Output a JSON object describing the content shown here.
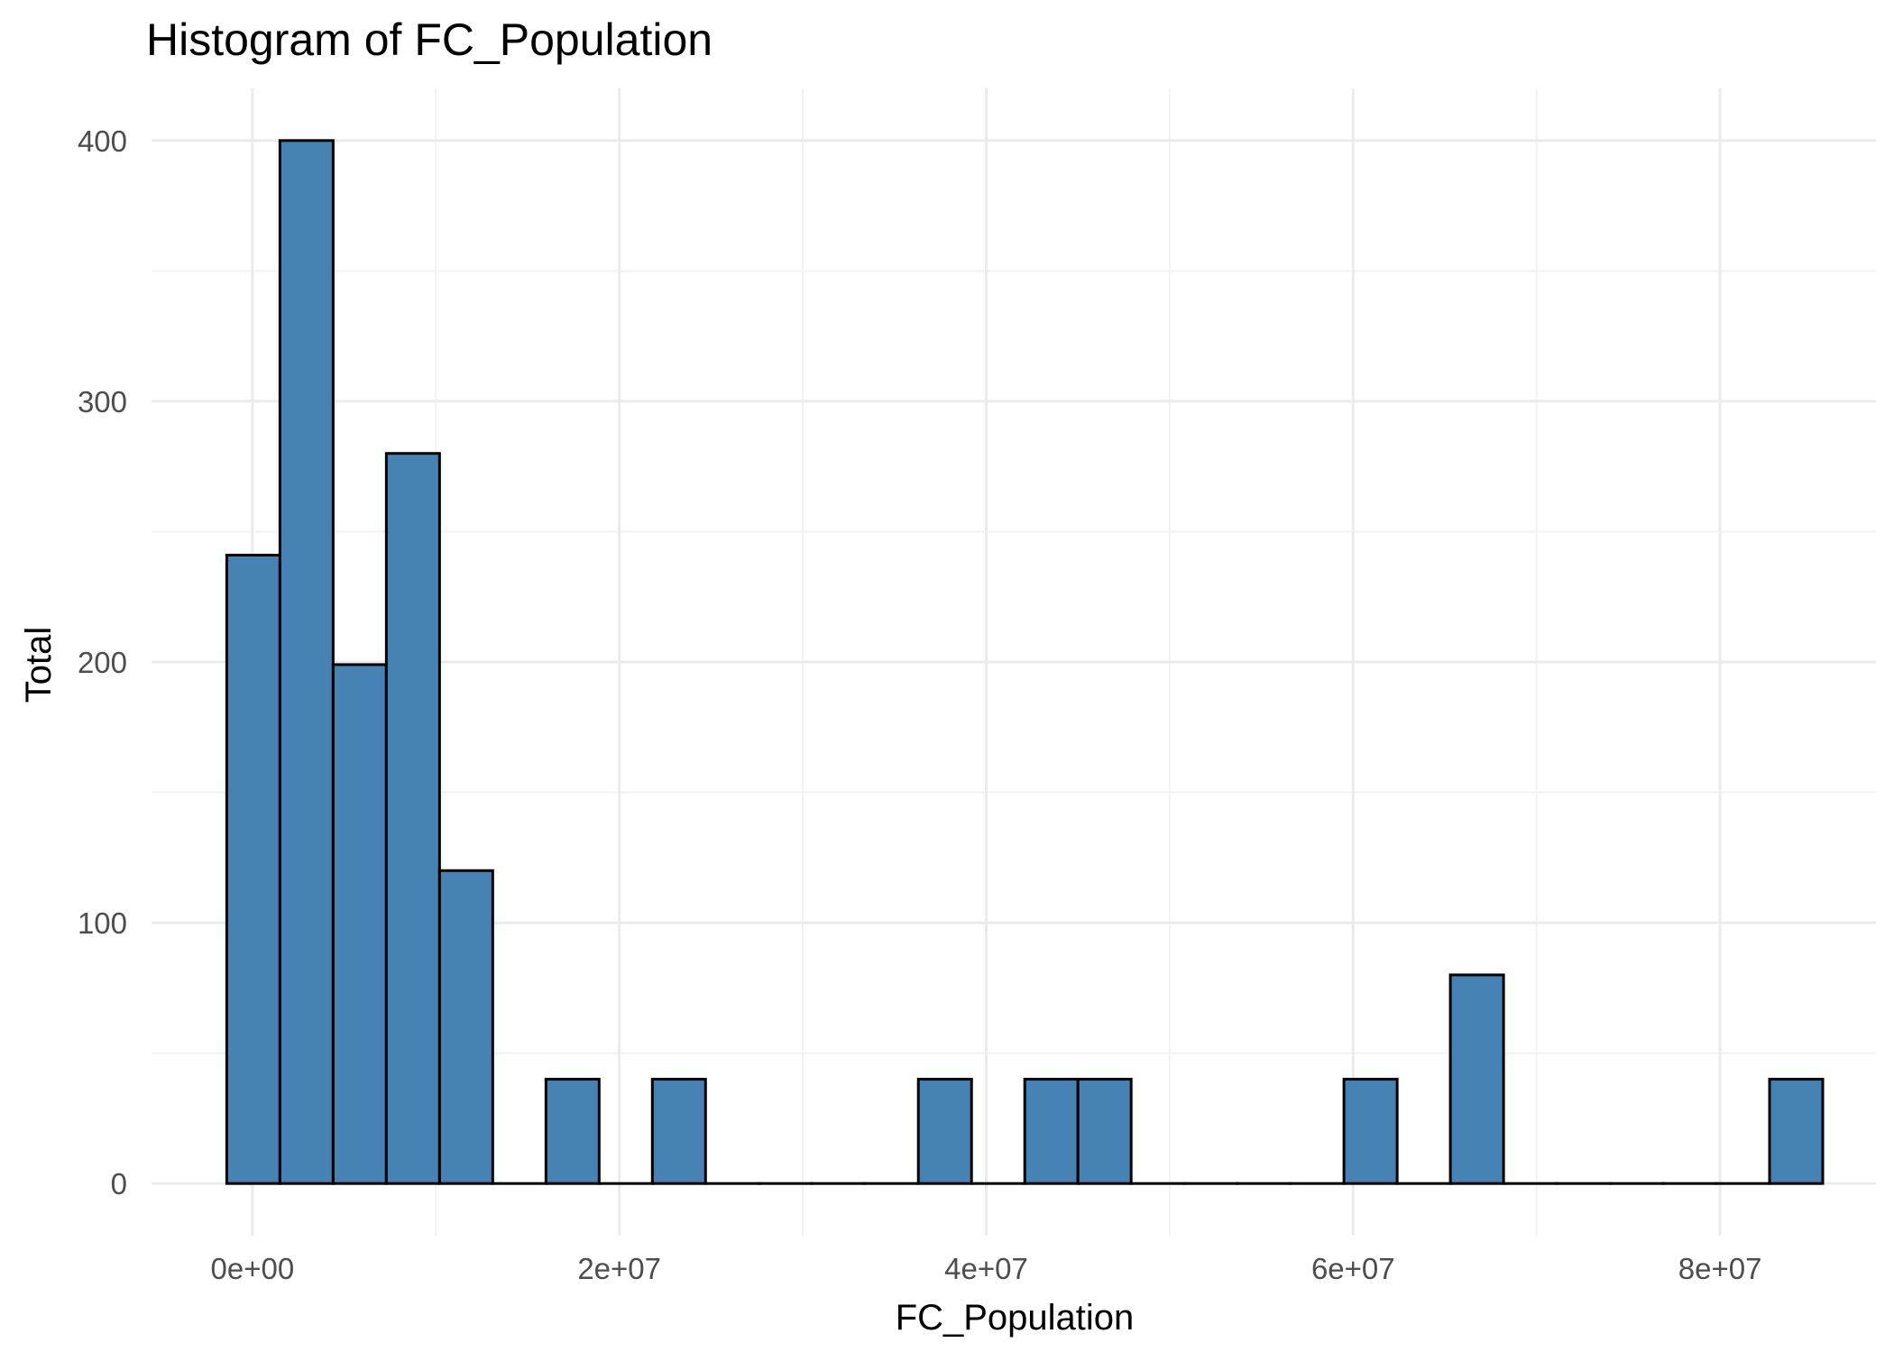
{
  "chart_data": {
    "type": "bar",
    "subtype": "histogram",
    "title": "Histogram of  FC_Population",
    "xlabel": "FC_Population",
    "ylabel": "Total",
    "bin_width": 2900000,
    "x_tick_values": [
      0,
      20000000,
      40000000,
      60000000,
      80000000
    ],
    "x_tick_labels": [
      "0e+00",
      "2e+07",
      "4e+07",
      "6e+07",
      "8e+07"
    ],
    "y_tick_values": [
      0,
      100,
      200,
      300,
      400
    ],
    "y_tick_labels": [
      "0",
      "100",
      "200",
      "300",
      "400"
    ],
    "xlim": [
      -5500000,
      88500000
    ],
    "ylim": [
      -20,
      420
    ],
    "grid": true,
    "bar_fill": "#4682b4",
    "bar_outline": "#000000",
    "bins": [
      {
        "start": -1400000,
        "end": 1500000,
        "count": 241
      },
      {
        "start": 1500000,
        "end": 4400000,
        "count": 400
      },
      {
        "start": 4400000,
        "end": 7300000,
        "count": 199
      },
      {
        "start": 7300000,
        "end": 10200000,
        "count": 280
      },
      {
        "start": 10200000,
        "end": 13100000,
        "count": 120
      },
      {
        "start": 13100000,
        "end": 16000000,
        "count": 0
      },
      {
        "start": 16000000,
        "end": 18900000,
        "count": 40
      },
      {
        "start": 18900000,
        "end": 21800000,
        "count": 0
      },
      {
        "start": 21800000,
        "end": 24700000,
        "count": 40
      },
      {
        "start": 24700000,
        "end": 27600000,
        "count": 0
      },
      {
        "start": 27600000,
        "end": 30500000,
        "count": 0
      },
      {
        "start": 30500000,
        "end": 33400000,
        "count": 0
      },
      {
        "start": 33400000,
        "end": 36300000,
        "count": 0
      },
      {
        "start": 36300000,
        "end": 39200000,
        "count": 40
      },
      {
        "start": 39200000,
        "end": 42100000,
        "count": 0
      },
      {
        "start": 42100000,
        "end": 45000000,
        "count": 40
      },
      {
        "start": 45000000,
        "end": 47900000,
        "count": 40
      },
      {
        "start": 47900000,
        "end": 50800000,
        "count": 0
      },
      {
        "start": 50800000,
        "end": 53700000,
        "count": 0
      },
      {
        "start": 53700000,
        "end": 56600000,
        "count": 0
      },
      {
        "start": 56600000,
        "end": 59500000,
        "count": 0
      },
      {
        "start": 59500000,
        "end": 62400000,
        "count": 40
      },
      {
        "start": 62400000,
        "end": 65300000,
        "count": 0
      },
      {
        "start": 65300000,
        "end": 68200000,
        "count": 80
      },
      {
        "start": 68200000,
        "end": 71100000,
        "count": 0
      },
      {
        "start": 71100000,
        "end": 74000000,
        "count": 0
      },
      {
        "start": 74000000,
        "end": 76900000,
        "count": 0
      },
      {
        "start": 76900000,
        "end": 79800000,
        "count": 0
      },
      {
        "start": 79800000,
        "end": 82700000,
        "count": 0
      },
      {
        "start": 82700000,
        "end": 85600000,
        "count": 40
      }
    ]
  }
}
